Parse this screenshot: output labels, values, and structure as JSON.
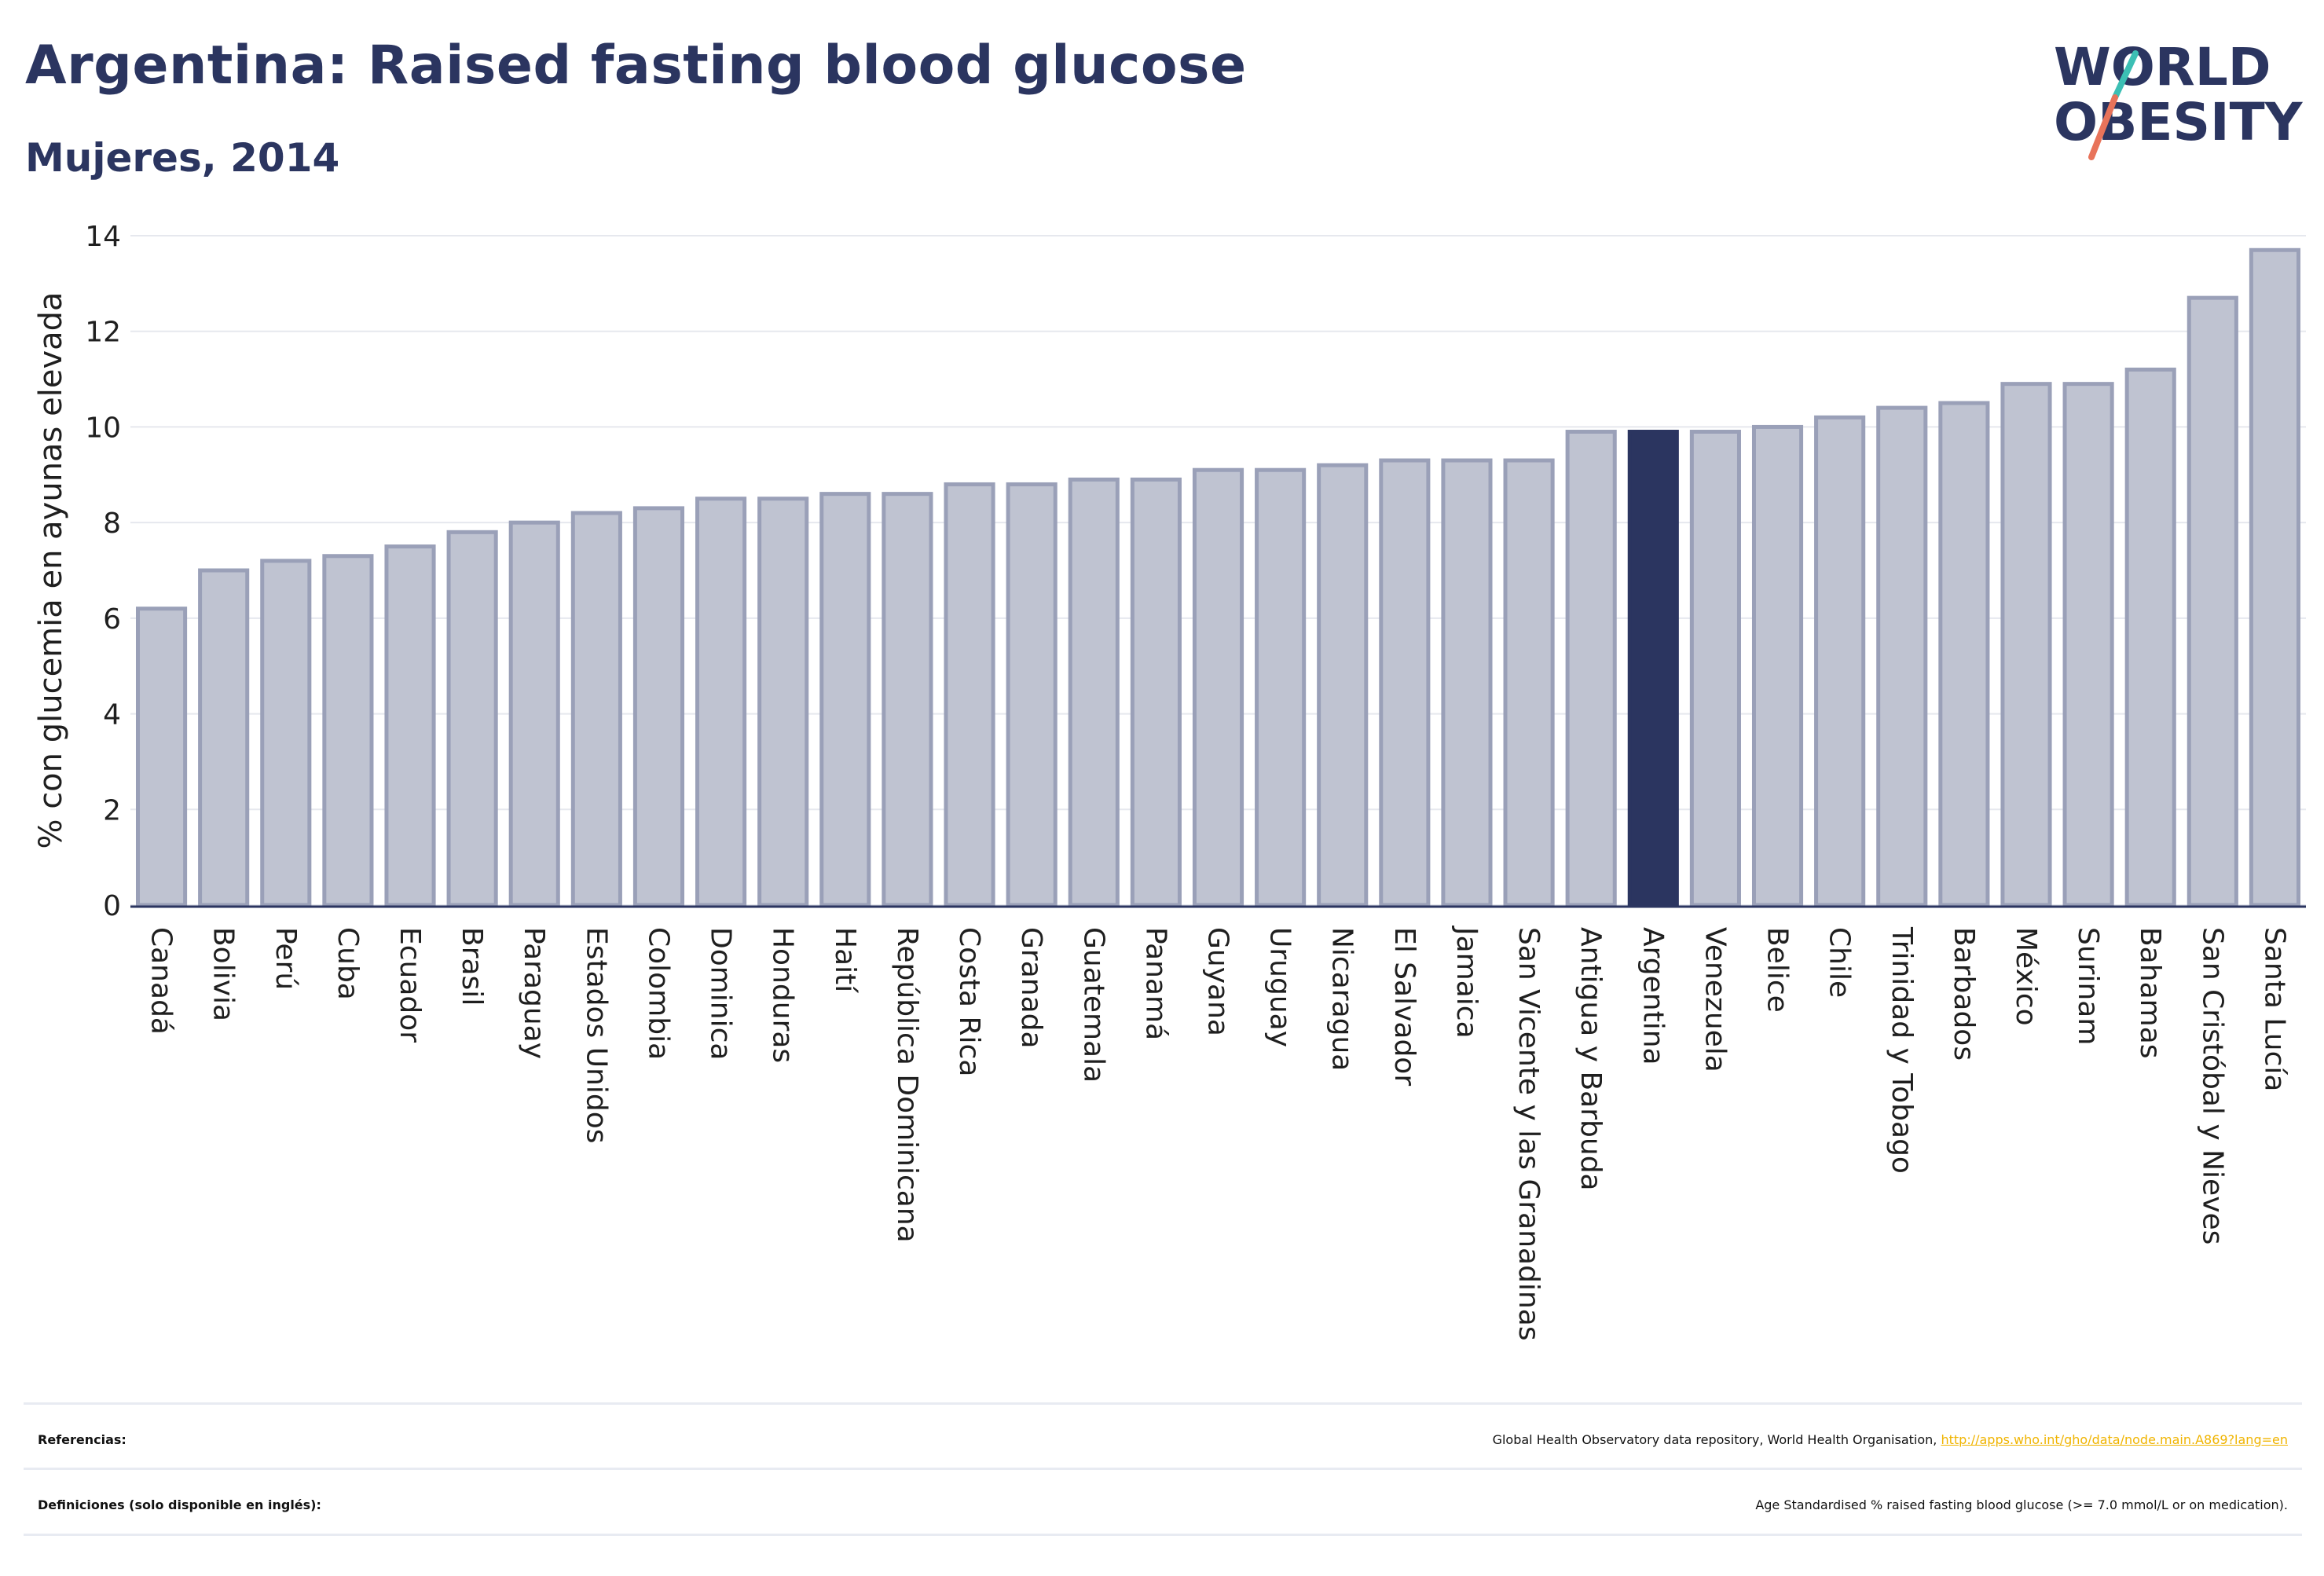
{
  "header": {
    "title": "Argentina: Raised fasting blood glucose",
    "subtitle": "Mujeres, 2014"
  },
  "logo": {
    "line1": "WORLD",
    "line2": "OBESITY",
    "text_color": "#2b3560",
    "slash_colors": [
      "#3cbfb4",
      "#e8735a"
    ]
  },
  "colors": {
    "bar_fill": "#bfc3d1",
    "bar_stroke": "#9aa0b8",
    "highlight": "#2b3560",
    "grid": "#e6e8ee",
    "axis": "#2b3560"
  },
  "chart_data": {
    "type": "bar",
    "ylabel": "% con glucemia en ayunas elevada",
    "ylim": [
      0,
      14
    ],
    "yticks": [
      0,
      2,
      4,
      6,
      8,
      10,
      12,
      14
    ],
    "grid": true,
    "highlight": "Argentina",
    "categories": [
      "Canadá",
      "Bolivia",
      "Perú",
      "Cuba",
      "Ecuador",
      "Brasil",
      "Paraguay",
      "Estados Unidos",
      "Colombia",
      "Dominica",
      "Honduras",
      "Haití",
      "República Dominicana",
      "Costa Rica",
      "Granada",
      "Guatemala",
      "Panamá",
      "Guyana",
      "Uruguay",
      "Nicaragua",
      "El Salvador",
      "Jamaica",
      "San Vicente y las Granadinas",
      "Antigua y Barbuda",
      "Argentina",
      "Venezuela",
      "Belice",
      "Chile",
      "Trinidad y Tobago",
      "Barbados",
      "México",
      "Surinam",
      "Bahamas",
      "San Cristóbal y Nieves",
      "Santa Lucía"
    ],
    "values": [
      6.2,
      7.0,
      7.2,
      7.3,
      7.5,
      7.8,
      8.0,
      8.2,
      8.3,
      8.5,
      8.5,
      8.6,
      8.6,
      8.8,
      8.8,
      8.9,
      8.9,
      9.1,
      9.1,
      9.2,
      9.3,
      9.3,
      9.3,
      9.9,
      9.9,
      9.9,
      10.0,
      10.2,
      10.4,
      10.5,
      10.9,
      10.9,
      11.2,
      12.7,
      13.7
    ]
  },
  "footer": {
    "references_label": "Referencias:",
    "references_text": "Global Health Observatory data repository, World Health Organisation,",
    "references_link": "http://apps.who.int/gho/data/node.main.A869?lang=en",
    "definitions_label": "Definiciones (solo disponible en inglés):",
    "definitions_text": "Age Standardised % raised fasting blood glucose (>= 7.0 mmol/L or on medication)."
  }
}
